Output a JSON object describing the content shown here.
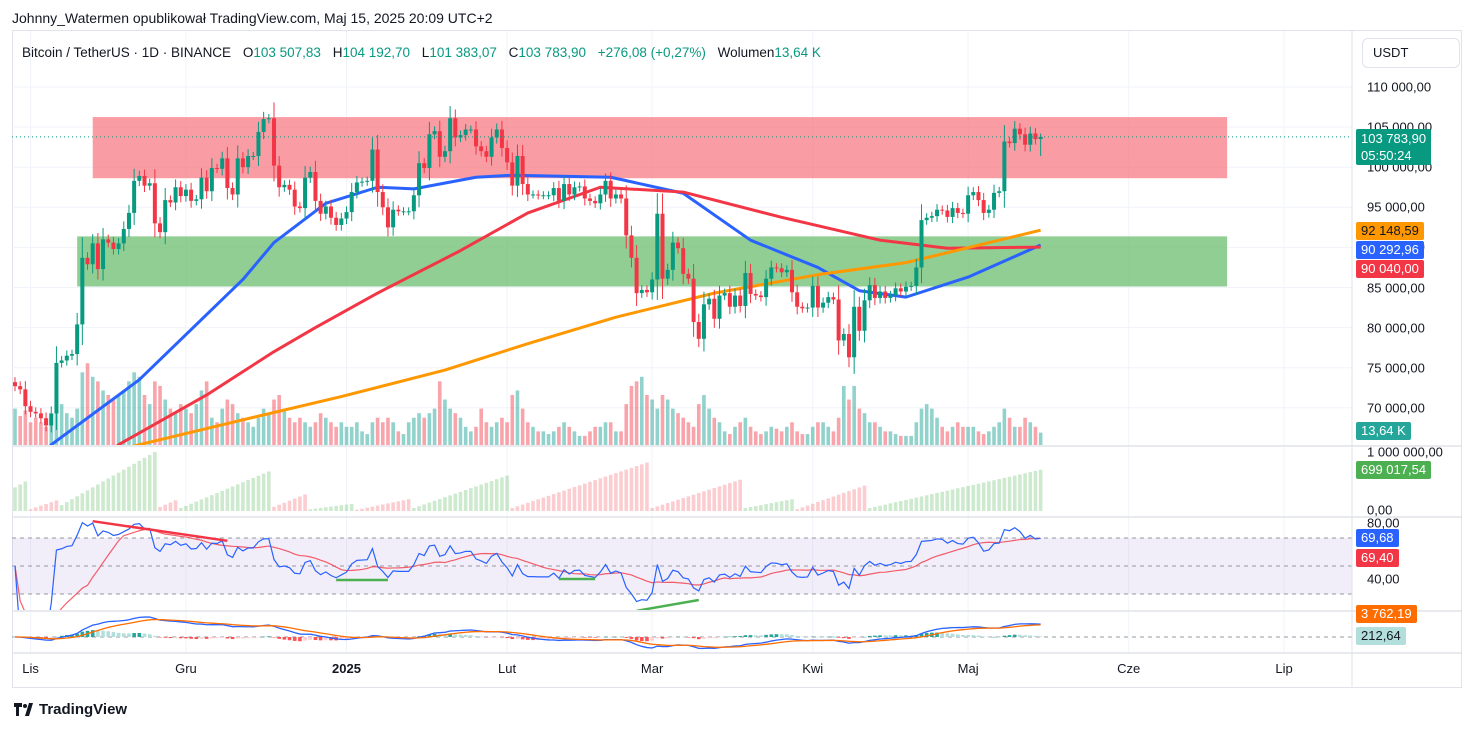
{
  "publisher_line": "Johnny_Watermen opublikował TradingView.com, Maj 15, 2025 20:09 UTC+2",
  "legend": {
    "symbol": "Bitcoin / TetherUS · 1D · BINANCE",
    "open_label": "O",
    "open": "103 507,83",
    "high_label": "H",
    "high": "104 192,70",
    "low_label": "L",
    "low": "101 383,07",
    "close_label": "C",
    "close": "103 783,90",
    "change": "+276,08 (+0,27%)",
    "volume_label": "Wolumen",
    "volume": "13,64 K"
  },
  "currency_button": "USDT",
  "footer_logo": "TradingView",
  "colors": {
    "up": "#089981",
    "down": "#f23645",
    "ma_fast": "#2962ff",
    "ma_mid": "#f23645",
    "ma_slow": "#ff9800",
    "resistance_zone": "#f7767f",
    "support_zone": "#66bb6a"
  },
  "badges": {
    "last_price": "103 783,90",
    "countdown": "05:50:24",
    "ma_slow": "92 148,59",
    "ma_fast": "90 292,96",
    "ma_mid": "90 040,00",
    "volume": "13,64 K",
    "osc": "699 017,54",
    "rsi": "69,68",
    "rsi_ma": "69,40",
    "macd": "3 762,19",
    "macd_hist": "212,64"
  },
  "chart_data": {
    "type": "candlestick",
    "price_axis": {
      "ylim": [
        65000,
        112000
      ],
      "tick_labels": [
        "110 000,00",
        "105 000,00",
        "100 000,00",
        "95 000,00",
        "90 000,00",
        "85 000,00",
        "80 000,00",
        "75 000,00",
        "70 000,00"
      ],
      "ticks": [
        110000,
        105000,
        100000,
        95000,
        90000,
        85000,
        80000,
        75000,
        70000
      ]
    },
    "time_axis": [
      {
        "label": "Lis",
        "date": "2024-11-01",
        "bold": false
      },
      {
        "label": "Gru",
        "date": "2024-12-01",
        "bold": false
      },
      {
        "label": "2025",
        "date": "2025-01-01",
        "bold": true
      },
      {
        "label": "Lut",
        "date": "2025-02-01",
        "bold": false
      },
      {
        "label": "Mar",
        "date": "2025-03-01",
        "bold": false
      },
      {
        "label": "Kwi",
        "date": "2025-04-01",
        "bold": false
      },
      {
        "label": "Maj",
        "date": "2025-05-01",
        "bold": false
      },
      {
        "label": "Cze",
        "date": "2025-06-01",
        "bold": false
      },
      {
        "label": "Lip",
        "date": "2025-07-01",
        "bold": false
      }
    ],
    "last_candle": {
      "open": 103507.83,
      "high": 104192.7,
      "low": 101383.07,
      "close": 103783.9
    },
    "daily": [
      {
        "month": "2024-10",
        "first_day": 29,
        "closes": [
          72700,
          72300,
          70200
        ],
        "volume_k": [
          40,
          32,
          38
        ]
      },
      {
        "month": "2024-11",
        "first_day": 1,
        "closes": [
          69500,
          69300,
          68700,
          67800,
          69300,
          75600,
          75900,
          76500,
          76700,
          80400,
          88700,
          87900,
          90500,
          87300,
          91000,
          90600,
          89800,
          90500,
          92300,
          94300,
          98300,
          98900,
          97700,
          98000,
          93000,
          91900,
          95900,
          95600,
          97500,
          96400
        ],
        "volume_k": [
          25,
          30,
          25,
          20,
          30,
          55,
          45,
          35,
          30,
          40,
          80,
          90,
          75,
          70,
          60,
          55,
          50,
          55,
          60,
          70,
          80,
          75,
          55,
          45,
          70,
          65,
          50,
          40,
          35,
          45
        ]
      },
      {
        "month": "2024-12",
        "first_day": 1,
        "closes": [
          97200,
          95800,
          96000,
          98700,
          97000,
          99900,
          99800,
          101100,
          97400,
          96600,
          101100,
          100000,
          101400,
          101400,
          104400,
          106000,
          106100,
          100200,
          97500,
          97800,
          97200,
          95100,
          94900,
          98700,
          99400,
          95800,
          94200,
          95100,
          93700,
          92800,
          93600
        ],
        "volume_k": [
          40,
          35,
          45,
          60,
          70,
          30,
          25,
          40,
          50,
          45,
          35,
          30,
          25,
          20,
          30,
          40,
          35,
          50,
          55,
          40,
          30,
          25,
          30,
          25,
          20,
          25,
          35,
          30,
          25,
          20,
          25
        ]
      },
      {
        "month": "2025-01",
        "first_day": 1,
        "closes": [
          94400,
          96900,
          98100,
          98200,
          98300,
          102200,
          96900,
          95000,
          92500,
          94700,
          94500,
          94500,
          94500,
          96500,
          100500,
          99900,
          104100,
          104500,
          101300,
          102000,
          106100,
          103700,
          104000,
          104700,
          104700,
          102600,
          102000,
          101300,
          103700,
          104700,
          102400
        ],
        "volume_k": [
          20,
          20,
          25,
          15,
          12,
          25,
          30,
          25,
          30,
          25,
          15,
          12,
          25,
          30,
          35,
          30,
          35,
          40,
          70,
          50,
          40,
          35,
          30,
          20,
          15,
          20,
          40,
          25,
          20,
          25,
          30
        ]
      },
      {
        "month": "2025-02",
        "first_day": 1,
        "closes": [
          100600,
          97700,
          101400,
          97900,
          96600,
          96600,
          96500,
          96500,
          96500,
          97400,
          95800,
          97900,
          96600,
          97500,
          97600,
          96100,
          95800,
          95500,
          96600,
          98300,
          96100,
          96600,
          96100,
          91500,
          88700,
          84300,
          84700,
          84400
        ],
        "volume_k": [
          25,
          55,
          60,
          40,
          25,
          20,
          15,
          15,
          12,
          15,
          20,
          25,
          20,
          15,
          10,
          10,
          15,
          20,
          20,
          25,
          25,
          15,
          15,
          45,
          65,
          70,
          75,
          55
        ]
      },
      {
        "month": "2025-03",
        "first_day": 1,
        "closes": [
          86000,
          94200,
          86100,
          87200,
          90600,
          89900,
          86700,
          86100,
          80700,
          78600,
          82900,
          83600,
          81100,
          84000,
          84300,
          82600,
          84000,
          82700,
          86800,
          84200,
          84000,
          83800,
          86100,
          87500,
          87400,
          86900,
          87200,
          84400,
          82600,
          82400,
          82500
        ],
        "volume_k": [
          50,
          40,
          55,
          50,
          40,
          35,
          30,
          25,
          20,
          45,
          55,
          40,
          30,
          25,
          15,
          12,
          20,
          25,
          30,
          20,
          15,
          12,
          15,
          20,
          18,
          15,
          20,
          25,
          15,
          12,
          12
        ]
      },
      {
        "month": "2025-04",
        "first_day": 1,
        "closes": [
          85200,
          82500,
          83100,
          83800,
          83500,
          78400,
          79200,
          76300,
          82600,
          79600,
          83400,
          85300,
          83700,
          84500,
          83700,
          84000,
          84900,
          84500,
          85100,
          85200,
          87500,
          93400,
          93700,
          93900,
          94700,
          94600,
          93800,
          94900,
          94300,
          94200
        ],
        "volume_k": [
          20,
          25,
          25,
          20,
          15,
          30,
          65,
          50,
          65,
          40,
          35,
          25,
          25,
          20,
          15,
          15,
          12,
          10,
          10,
          10,
          25,
          40,
          45,
          40,
          30,
          20,
          15,
          20,
          25,
          20
        ]
      },
      {
        "month": "2025-05",
        "first_day": 1,
        "closes": [
          96500,
          96900,
          95900,
          94300,
          94700,
          96800,
          97000,
          103200,
          103000,
          104800,
          104100,
          102800,
          104200,
          103500,
          103783.9
        ],
        "volume_k": [
          20,
          20,
          15,
          12,
          15,
          20,
          25,
          40,
          30,
          20,
          20,
          30,
          25,
          20,
          13.64
        ]
      }
    ],
    "moving_averages": [
      {
        "key": "ma_fast",
        "points": [
          [
            "2024-10-29",
            60000
          ],
          [
            "2024-11-05",
            65400
          ],
          [
            "2024-11-22",
            73500
          ],
          [
            "2024-12-12",
            86000
          ],
          [
            "2024-12-18",
            90600
          ],
          [
            "2024-12-28",
            95500
          ],
          [
            "2025-01-07",
            97500
          ],
          [
            "2025-01-14",
            97300
          ],
          [
            "2025-01-26",
            98750
          ],
          [
            "2025-02-02",
            99000
          ],
          [
            "2025-02-21",
            98750
          ],
          [
            "2025-03-07",
            96750
          ],
          [
            "2025-03-20",
            90900
          ],
          [
            "2025-04-02",
            87500
          ],
          [
            "2025-04-10",
            84600
          ],
          [
            "2025-04-19",
            83800
          ],
          [
            "2025-05-01",
            86300
          ],
          [
            "2025-05-15",
            90292.96
          ]
        ]
      },
      {
        "key": "ma_mid",
        "points": [
          [
            "2024-11-05",
            58000
          ],
          [
            "2024-11-18",
            65400
          ],
          [
            "2024-12-05",
            71600
          ],
          [
            "2024-12-18",
            77000
          ],
          [
            "2024-12-26",
            80000
          ],
          [
            "2025-01-07",
            84300
          ],
          [
            "2025-01-23",
            89600
          ],
          [
            "2025-02-05",
            94300
          ],
          [
            "2025-02-19",
            97500
          ],
          [
            "2025-03-07",
            96900
          ],
          [
            "2025-03-26",
            93750
          ],
          [
            "2025-04-14",
            90900
          ],
          [
            "2025-04-27",
            89900
          ],
          [
            "2025-05-15",
            90040
          ]
        ]
      },
      {
        "key": "ma_slow",
        "points": [
          [
            "2024-11-10",
            63500
          ],
          [
            "2024-11-22",
            65400
          ],
          [
            "2024-12-12",
            68500
          ],
          [
            "2024-12-31",
            71400
          ],
          [
            "2025-01-20",
            74700
          ],
          [
            "2025-02-05",
            78000
          ],
          [
            "2025-02-22",
            81300
          ],
          [
            "2025-03-13",
            84300
          ],
          [
            "2025-04-02",
            86600
          ],
          [
            "2025-04-19",
            88100
          ],
          [
            "2025-05-15",
            92148.59
          ]
        ]
      }
    ],
    "zones": [
      {
        "kind": "resistance",
        "from": "2024-11-13",
        "to": "2025-06-20",
        "price_top": 106250,
        "price_bottom": 98625
      },
      {
        "kind": "support",
        "from": "2024-11-10",
        "to": "2025-06-20",
        "price_top": 91375,
        "price_bottom": 85125
      }
    ],
    "oscillator_pane": {
      "axis_labels": [
        "1 000 000,00",
        "0,00"
      ],
      "ylim": [
        0,
        1000000
      ],
      "segments": [
        {
          "from": "2024-10-29",
          "to": "2024-10-31",
          "color": "up",
          "start": 400000,
          "end": 500000
        },
        {
          "from": "2024-11-01",
          "to": "2024-11-06",
          "color": "down",
          "start": 30000,
          "end": 180000
        },
        {
          "from": "2024-11-07",
          "to": "2024-11-25",
          "color": "up",
          "start": 100000,
          "end": 1000000
        },
        {
          "from": "2024-11-26",
          "to": "2024-11-29",
          "color": "down",
          "start": 70000,
          "end": 180000
        },
        {
          "from": "2024-11-30",
          "to": "2024-12-17",
          "color": "up",
          "start": 50000,
          "end": 670000
        },
        {
          "from": "2024-12-18",
          "to": "2024-12-24",
          "color": "down",
          "start": 70000,
          "end": 280000
        },
        {
          "from": "2024-12-25",
          "to": "2025-01-02",
          "color": "up",
          "start": 30000,
          "end": 120000
        },
        {
          "from": "2025-01-03",
          "to": "2025-01-13",
          "color": "down",
          "start": 20000,
          "end": 200000
        },
        {
          "from": "2025-01-14",
          "to": "2025-02-01",
          "color": "up",
          "start": 50000,
          "end": 600000
        },
        {
          "from": "2025-02-02",
          "to": "2025-02-28",
          "color": "down",
          "start": 50000,
          "end": 820000
        },
        {
          "from": "2025-03-01",
          "to": "2025-03-18",
          "color": "down",
          "start": 50000,
          "end": 530000
        },
        {
          "from": "2025-03-19",
          "to": "2025-03-28",
          "color": "up",
          "start": 50000,
          "end": 200000
        },
        {
          "from": "2025-03-29",
          "to": "2025-04-11",
          "color": "down",
          "start": 30000,
          "end": 430000
        },
        {
          "from": "2025-04-12",
          "to": "2025-05-15",
          "color": "up",
          "start": 50000,
          "end": 699017.54
        }
      ]
    },
    "rsi_pane": {
      "axis_labels": [
        "80,00",
        "40,00"
      ],
      "upper": 70,
      "middle": 50,
      "lower": 30,
      "last_rsi": 69.68,
      "last_rsi_ma": 69.4,
      "divergence_lines": [
        {
          "color": "down",
          "from": [
            "2024-11-13",
            82
          ],
          "to": [
            "2024-12-09",
            68
          ]
        },
        {
          "color": "up",
          "from": [
            "2024-12-30",
            40
          ],
          "to": [
            "2025-01-09",
            40
          ]
        },
        {
          "color": "up",
          "from": [
            "2025-02-11",
            40.7
          ],
          "to": [
            "2025-02-18",
            40.7
          ]
        },
        {
          "color": "up",
          "from": [
            "2025-02-26",
            18
          ],
          "to": [
            "2025-03-10",
            25.7
          ]
        }
      ]
    },
    "macd_pane": {
      "last_macd": 3762.19,
      "last_histogram": 212.64
    }
  }
}
